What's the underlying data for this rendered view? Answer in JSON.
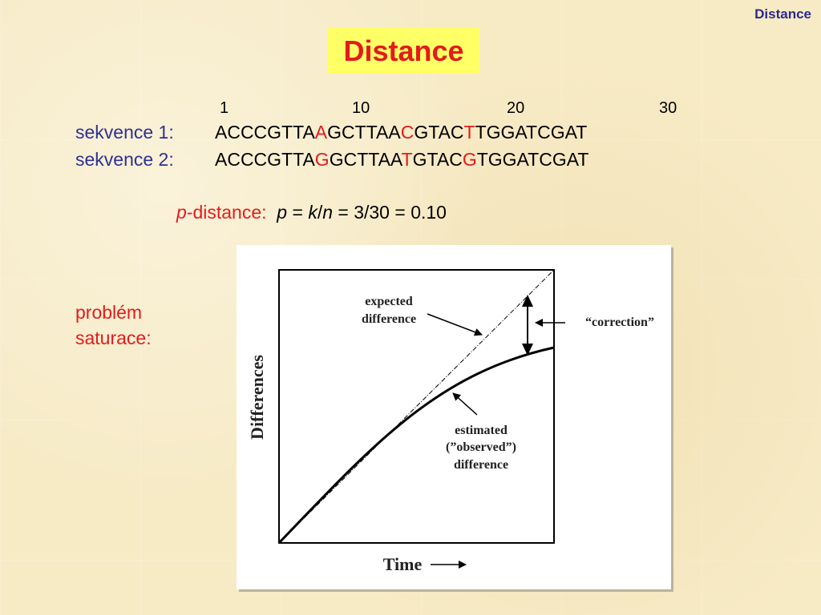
{
  "header": {
    "label": "Distance"
  },
  "title": "Distance",
  "positions": [
    "1",
    "10",
    "20",
    "30"
  ],
  "sequences": [
    {
      "label": "sekvence 1:",
      "parts": [
        "ACCCGTTA",
        "A",
        "GCTTAA",
        "C",
        "GTAC",
        "T",
        "TGGATCGAT"
      ]
    },
    {
      "label": "sekvence 2:",
      "parts": [
        "ACCCGTTA",
        "G",
        "GCTTAA",
        "T",
        "GTAC",
        "G",
        "TGGATCGAT"
      ]
    }
  ],
  "p_distance": {
    "p": "p",
    "label": "-distance:",
    "formula_p": "p",
    "eq1": " = ",
    "k": "k",
    "slash": "/",
    "n": "n",
    "rest": " = 3/30 = 0.10"
  },
  "problem": {
    "line1": "problém",
    "line2": "saturace:"
  },
  "figure": {
    "ylabel": "Differences",
    "xlabel": "Time",
    "expected_line1": "expected",
    "expected_line2": "difference",
    "correction": "“correction”",
    "estimated_line1": "estimated",
    "estimated_line2": "(”observed”)",
    "estimated_line3": "difference"
  }
}
